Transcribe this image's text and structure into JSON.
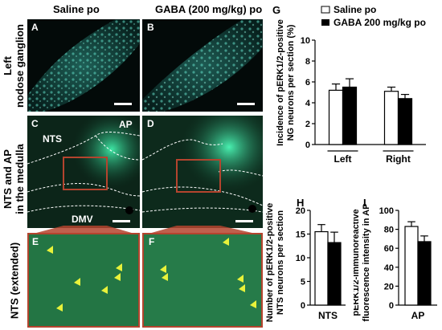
{
  "columns": {
    "saline": "Saline po",
    "gaba": "GABA (200 mg/kg) po"
  },
  "row_labels": {
    "row1": [
      "Left",
      "nodose ganglion"
    ],
    "row2": [
      "NTS and AP",
      "in the medulla"
    ],
    "row3": [
      "NTS (extended)"
    ]
  },
  "panel_letters": {
    "A": "A",
    "B": "B",
    "C": "C",
    "D": "D",
    "E": "E",
    "F": "F",
    "G": "G",
    "H": "H",
    "I": "I"
  },
  "region_labels": {
    "nts": "NTS",
    "ap": "AP",
    "dmv": "DMV"
  },
  "legend": {
    "saline": "Saline po",
    "gaba": "GABA 200 mg/kg po"
  },
  "colors": {
    "saline_bar": "#ffffff",
    "gaba_bar": "#000000",
    "fluor_bg": "#0d2a1e",
    "fluor": "#3fdc9a",
    "roi_box": "#b4442e",
    "arrowhead": "#e8f23a"
  },
  "chart_data": [
    {
      "id": "G",
      "type": "bar",
      "ylabel": "Incidence of pERK1/2-positive NG neurons per section (%)",
      "ylabel_lines": [
        "Incidence of pERK1/2-positive",
        "NG neurons per section (%)"
      ],
      "categories": [
        "Left",
        "Right"
      ],
      "ylim": [
        0,
        10
      ],
      "yticks": [
        "0",
        "2",
        "4",
        "6",
        "8",
        "10"
      ],
      "series": [
        {
          "name": "Saline po",
          "values": [
            5.2,
            5.1
          ],
          "errors": [
            0.6,
            0.4
          ]
        },
        {
          "name": "GABA 200 mg/kg po",
          "values": [
            5.5,
            4.4
          ],
          "errors": [
            0.8,
            0.4
          ]
        }
      ]
    },
    {
      "id": "H",
      "type": "bar",
      "ylabel": "Number of pERK1/2-positive NTS neurons per section",
      "ylabel_lines": [
        "Number of pERK1/2-positive",
        "NTS neurons per section"
      ],
      "categories": [
        "NTS"
      ],
      "ylim": [
        0,
        20
      ],
      "yticks": [
        "0",
        "5",
        "10",
        "15",
        "20"
      ],
      "series": [
        {
          "name": "Saline po",
          "values": [
            15.5
          ],
          "errors": [
            1.5
          ]
        },
        {
          "name": "GABA 200 mg/kg po",
          "values": [
            13.2
          ],
          "errors": [
            2.2
          ]
        }
      ]
    },
    {
      "id": "I",
      "type": "bar",
      "ylabel": "pERK1/2-immunoreactive fluorescence intensity in AP",
      "ylabel_lines": [
        "pERK1/2-immunoreactive",
        "fluorescence intensity in AP"
      ],
      "categories": [
        "AP"
      ],
      "ylim": [
        0,
        100
      ],
      "yticks": [
        "0",
        "20",
        "40",
        "60",
        "80",
        "100"
      ],
      "series": [
        {
          "name": "Saline po",
          "values": [
            83
          ],
          "errors": [
            5
          ]
        },
        {
          "name": "GABA 200 mg/kg po",
          "values": [
            67
          ],
          "errors": [
            6
          ]
        }
      ]
    }
  ]
}
